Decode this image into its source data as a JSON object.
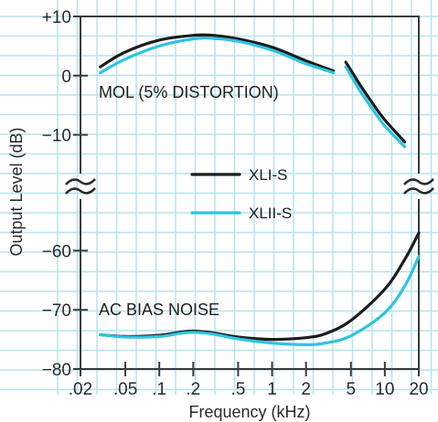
{
  "chart_data": {
    "type": "line",
    "xlabel": "Frequency (kHz)",
    "ylabel": "Output Level (dB)",
    "x_scale": "log",
    "xlim": [
      0.02,
      20
    ],
    "x_ticks": [
      0.02,
      0.05,
      0.1,
      0.2,
      0.5,
      1,
      2,
      5,
      10,
      20
    ],
    "x_tick_labels": [
      ".02",
      ".05",
      ".1",
      ".2",
      ".5",
      "1",
      "2",
      "5",
      "10",
      "20"
    ],
    "y_axis_break": true,
    "y_ranges": [
      [
        -80,
        -55
      ],
      [
        -15,
        10
      ]
    ],
    "y_ticks": [
      10,
      0,
      -10,
      -60,
      -70,
      -80
    ],
    "y_tick_labels": [
      "+10",
      "0",
      "−10",
      "−60",
      "−70",
      "−80"
    ],
    "grid": true,
    "legend_placement": "center-right",
    "legend": [
      "XLI-S",
      "XLII-S"
    ],
    "annotations": [
      "MOL (5% DISTORTION)",
      "AC BIAS NOISE"
    ],
    "colors": {
      "XLI-S": "#1c1c1c",
      "XLII-S": "#2ec4e0",
      "grid": "#b5e3ef"
    },
    "series": [
      {
        "name": "XLI-S",
        "group": "MOL",
        "segments": [
          {
            "x": [
              0.03,
              0.05,
              0.1,
              0.2,
              0.3,
              0.5,
              1,
              2,
              3.5
            ],
            "y": [
              1.5,
              4,
              6,
              6.8,
              6.8,
              6.2,
              4.8,
              2.5,
              0.8
            ]
          },
          {
            "x": [
              4.5,
              6,
              8,
              10,
              15
            ],
            "y": [
              2.3,
              -1.5,
              -5,
              -7.5,
              -11.2
            ]
          }
        ]
      },
      {
        "name": "XLII-S",
        "group": "MOL",
        "segments": [
          {
            "x": [
              0.03,
              0.05,
              0.1,
              0.2,
              0.3,
              0.5,
              1,
              2,
              3.5
            ],
            "y": [
              0.5,
              2.8,
              5,
              6.2,
              6.3,
              5.8,
              4.3,
              2,
              0.5
            ]
          },
          {
            "x": [
              4.5,
              6,
              8,
              10,
              15
            ],
            "y": [
              1.5,
              -2.5,
              -6,
              -8.5,
              -12
            ]
          }
        ]
      },
      {
        "name": "XLI-S",
        "group": "AC BIAS NOISE",
        "segments": [
          {
            "x": [
              0.03,
              0.05,
              0.1,
              0.15,
              0.2,
              0.3,
              0.5,
              1,
              2,
              3,
              5,
              10,
              15,
              20
            ],
            "y": [
              -74.2,
              -74.5,
              -74.3,
              -73.8,
              -73.6,
              -73.9,
              -74.6,
              -75,
              -74.7,
              -74,
              -71.8,
              -66.5,
              -61.5,
              -57
            ]
          }
        ]
      },
      {
        "name": "XLII-S",
        "group": "AC BIAS NOISE",
        "segments": [
          {
            "x": [
              0.03,
              0.05,
              0.1,
              0.15,
              0.2,
              0.3,
              0.5,
              1,
              2,
              3,
              5,
              10,
              15,
              20
            ],
            "y": [
              -74.2,
              -74.6,
              -74.5,
              -74,
              -73.8,
              -74.1,
              -74.9,
              -75.6,
              -75.9,
              -75.6,
              -74.4,
              -70.5,
              -66,
              -61
            ]
          }
        ]
      }
    ]
  }
}
